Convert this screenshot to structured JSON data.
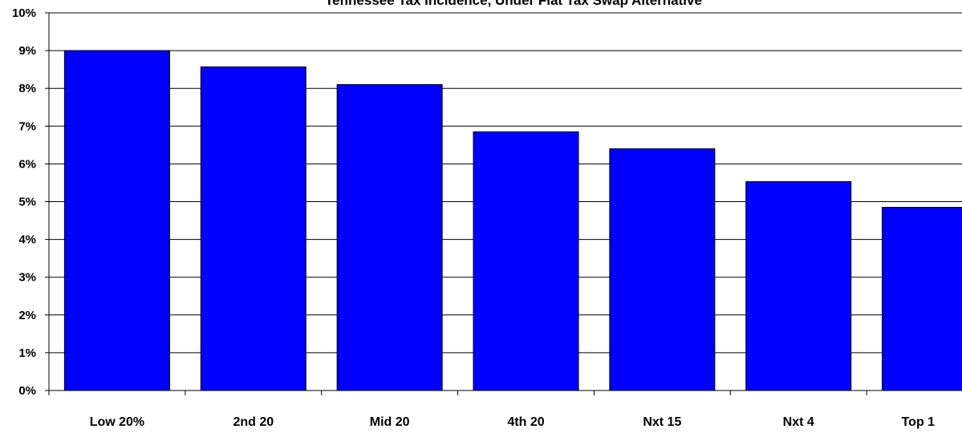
{
  "chart_data": {
    "type": "bar",
    "title": "Tennessee Tax Incidence, Under Flat Tax Swap Alternative",
    "xlabel": "",
    "ylabel": "",
    "categories": [
      "Low 20%",
      "2nd 20",
      "Mid 20",
      "4th 20",
      "Nxt 15",
      "Nxt 4",
      "Top 1"
    ],
    "values": [
      9.0,
      8.57,
      8.1,
      6.85,
      6.4,
      5.53,
      4.85
    ],
    "value_unit": "%",
    "ylim": [
      0,
      10
    ],
    "yticks": [
      "0%",
      "1%",
      "2%",
      "3%",
      "4%",
      "5%",
      "6%",
      "7%",
      "8%",
      "9%",
      "10%"
    ],
    "grid": true,
    "legend": "none",
    "colors": {
      "bar": "#0000FF",
      "bar_outline": "#000000",
      "grid": "#000000"
    }
  }
}
